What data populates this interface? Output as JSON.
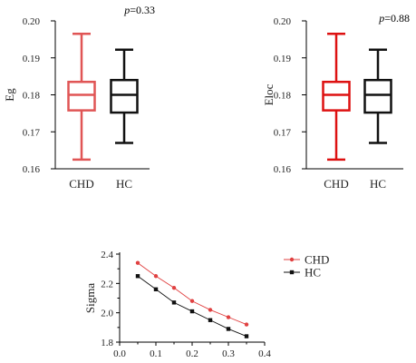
{
  "chart_data": [
    {
      "type": "box",
      "ylabel": "Eg",
      "ylim": [
        0.16,
        0.2
      ],
      "y_ticks": [
        "0.16",
        "0.17",
        "0.18",
        "0.19",
        "0.20"
      ],
      "p_italic": "p",
      "p_value": "=0.33",
      "groups": [
        {
          "name": "CHD",
          "min": 0.1625,
          "q1": 0.1758,
          "median": 0.18,
          "q3": 0.1835,
          "max": 0.1965,
          "color": "#e05555"
        },
        {
          "name": "HC",
          "min": 0.167,
          "q1": 0.1752,
          "median": 0.18,
          "q3": 0.184,
          "max": 0.1922,
          "color": "#111111"
        }
      ]
    },
    {
      "type": "box",
      "ylabel": "Eloc",
      "ylim": [
        0.16,
        0.2
      ],
      "y_ticks": [
        "0.16",
        "0.17",
        "0.18",
        "0.19",
        "0.20"
      ],
      "p_italic": "p",
      "p_value": "=0.88",
      "groups": [
        {
          "name": "CHD",
          "min": 0.1625,
          "q1": 0.1758,
          "median": 0.18,
          "q3": 0.1835,
          "max": 0.1965,
          "color": "#dd1111"
        },
        {
          "name": "HC",
          "min": 0.167,
          "q1": 0.1752,
          "median": 0.18,
          "q3": 0.184,
          "max": 0.1922,
          "color": "#111111"
        }
      ]
    },
    {
      "type": "line",
      "ylabel": "Sigma",
      "xlim": [
        0.0,
        0.4
      ],
      "ylim": [
        1.8,
        2.4
      ],
      "x_ticks": [
        "0.0",
        "0.1",
        "0.2",
        "0.3",
        "0.4"
      ],
      "y_ticks": [
        "1.8",
        "2.0",
        "2.2",
        "2.4"
      ],
      "legend_position": "top-right",
      "x": [
        0.05,
        0.1,
        0.15,
        0.2,
        0.25,
        0.3,
        0.35
      ],
      "series": [
        {
          "name": "CHD",
          "values": [
            2.34,
            2.25,
            2.17,
            2.08,
            2.02,
            1.97,
            1.92
          ],
          "color": "#e04040",
          "marker": "circle"
        },
        {
          "name": "HC",
          "values": [
            2.25,
            2.16,
            2.07,
            2.01,
            1.95,
            1.89,
            1.84
          ],
          "color": "#111111",
          "marker": "square"
        }
      ]
    }
  ]
}
